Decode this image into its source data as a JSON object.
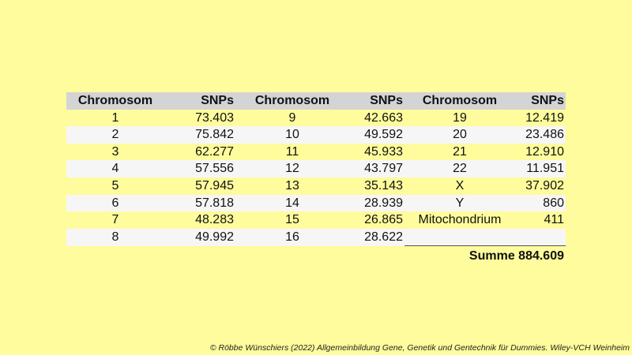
{
  "table": {
    "headers": [
      "Chromosom",
      "SNPs",
      "Chromosom",
      "SNPs",
      "Chromosom",
      "SNPs"
    ],
    "rows": [
      [
        "1",
        "73.403",
        "9",
        "42.663",
        "19",
        "12.419"
      ],
      [
        "2",
        "75.842",
        "10",
        "49.592",
        "20",
        "23.486"
      ],
      [
        "3",
        "62.277",
        "11",
        "45.933",
        "21",
        "12.910"
      ],
      [
        "4",
        "57.556",
        "12",
        "43.797",
        "22",
        "11.951"
      ],
      [
        "5",
        "57.945",
        "13",
        "35.143",
        "X",
        "37.902"
      ],
      [
        "6",
        "57.818",
        "14",
        "28.939",
        "Y",
        "860"
      ],
      [
        "7",
        "48.283",
        "15",
        "26.865",
        "Mitochondrium",
        "411"
      ],
      [
        "8",
        "49.992",
        "16",
        "28.622",
        "",
        ""
      ]
    ],
    "sum_label": "Summe 884.609"
  },
  "footer": {
    "credit": "© Röbbe Wünschiers (2022) Allgemeinbildung Gene, Genetik und Gentechnik für Dummies. Wiley-VCH Weinheim"
  }
}
